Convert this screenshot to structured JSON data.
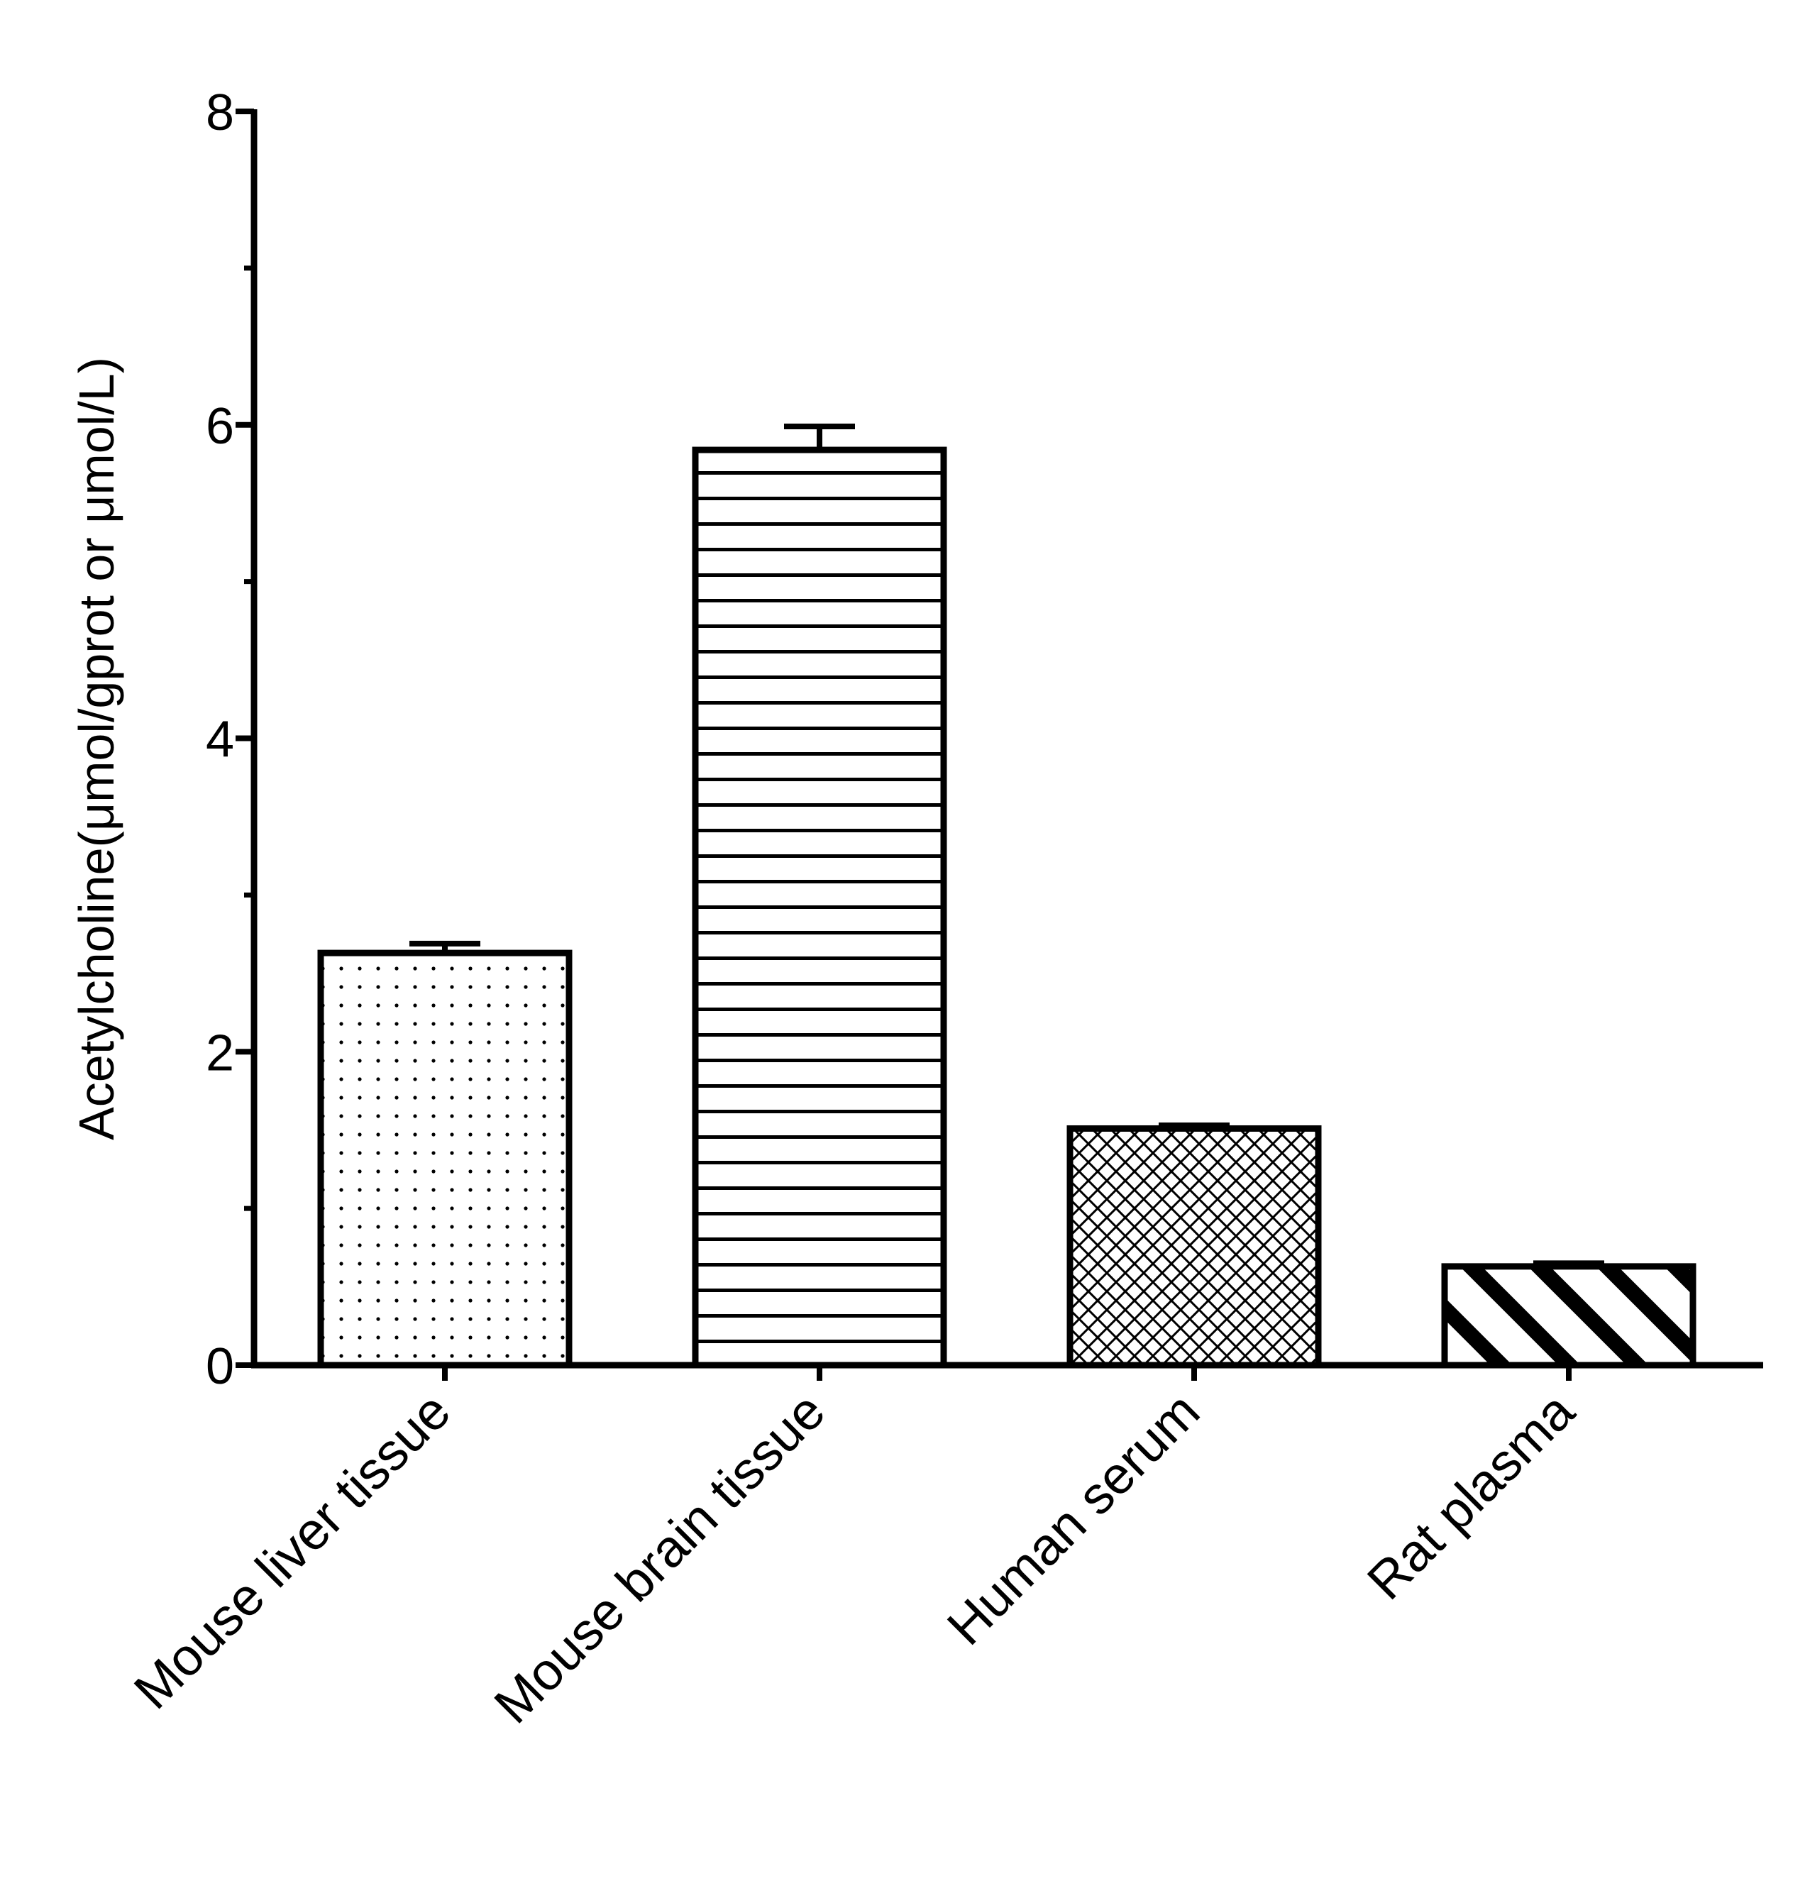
{
  "chart_data": {
    "type": "bar",
    "title": "",
    "xlabel": "",
    "ylabel": "Acetylcholine(μmol/gprot or μmol/L)",
    "ylim": [
      0,
      8
    ],
    "yticks": [
      "0",
      "2",
      "4",
      "6",
      "8"
    ],
    "grid": false,
    "categories": [
      "Mouse liver tissue",
      "Mouse brain tissue",
      "Human serum",
      "Rat plasma"
    ],
    "values": [
      2.63,
      5.84,
      1.51,
      0.63
    ],
    "errors": [
      0.06,
      0.15,
      0.02,
      0.02
    ],
    "patterns": [
      "dots",
      "horizontal-lines",
      "crosshatch",
      "diagonal-stripes"
    ]
  }
}
